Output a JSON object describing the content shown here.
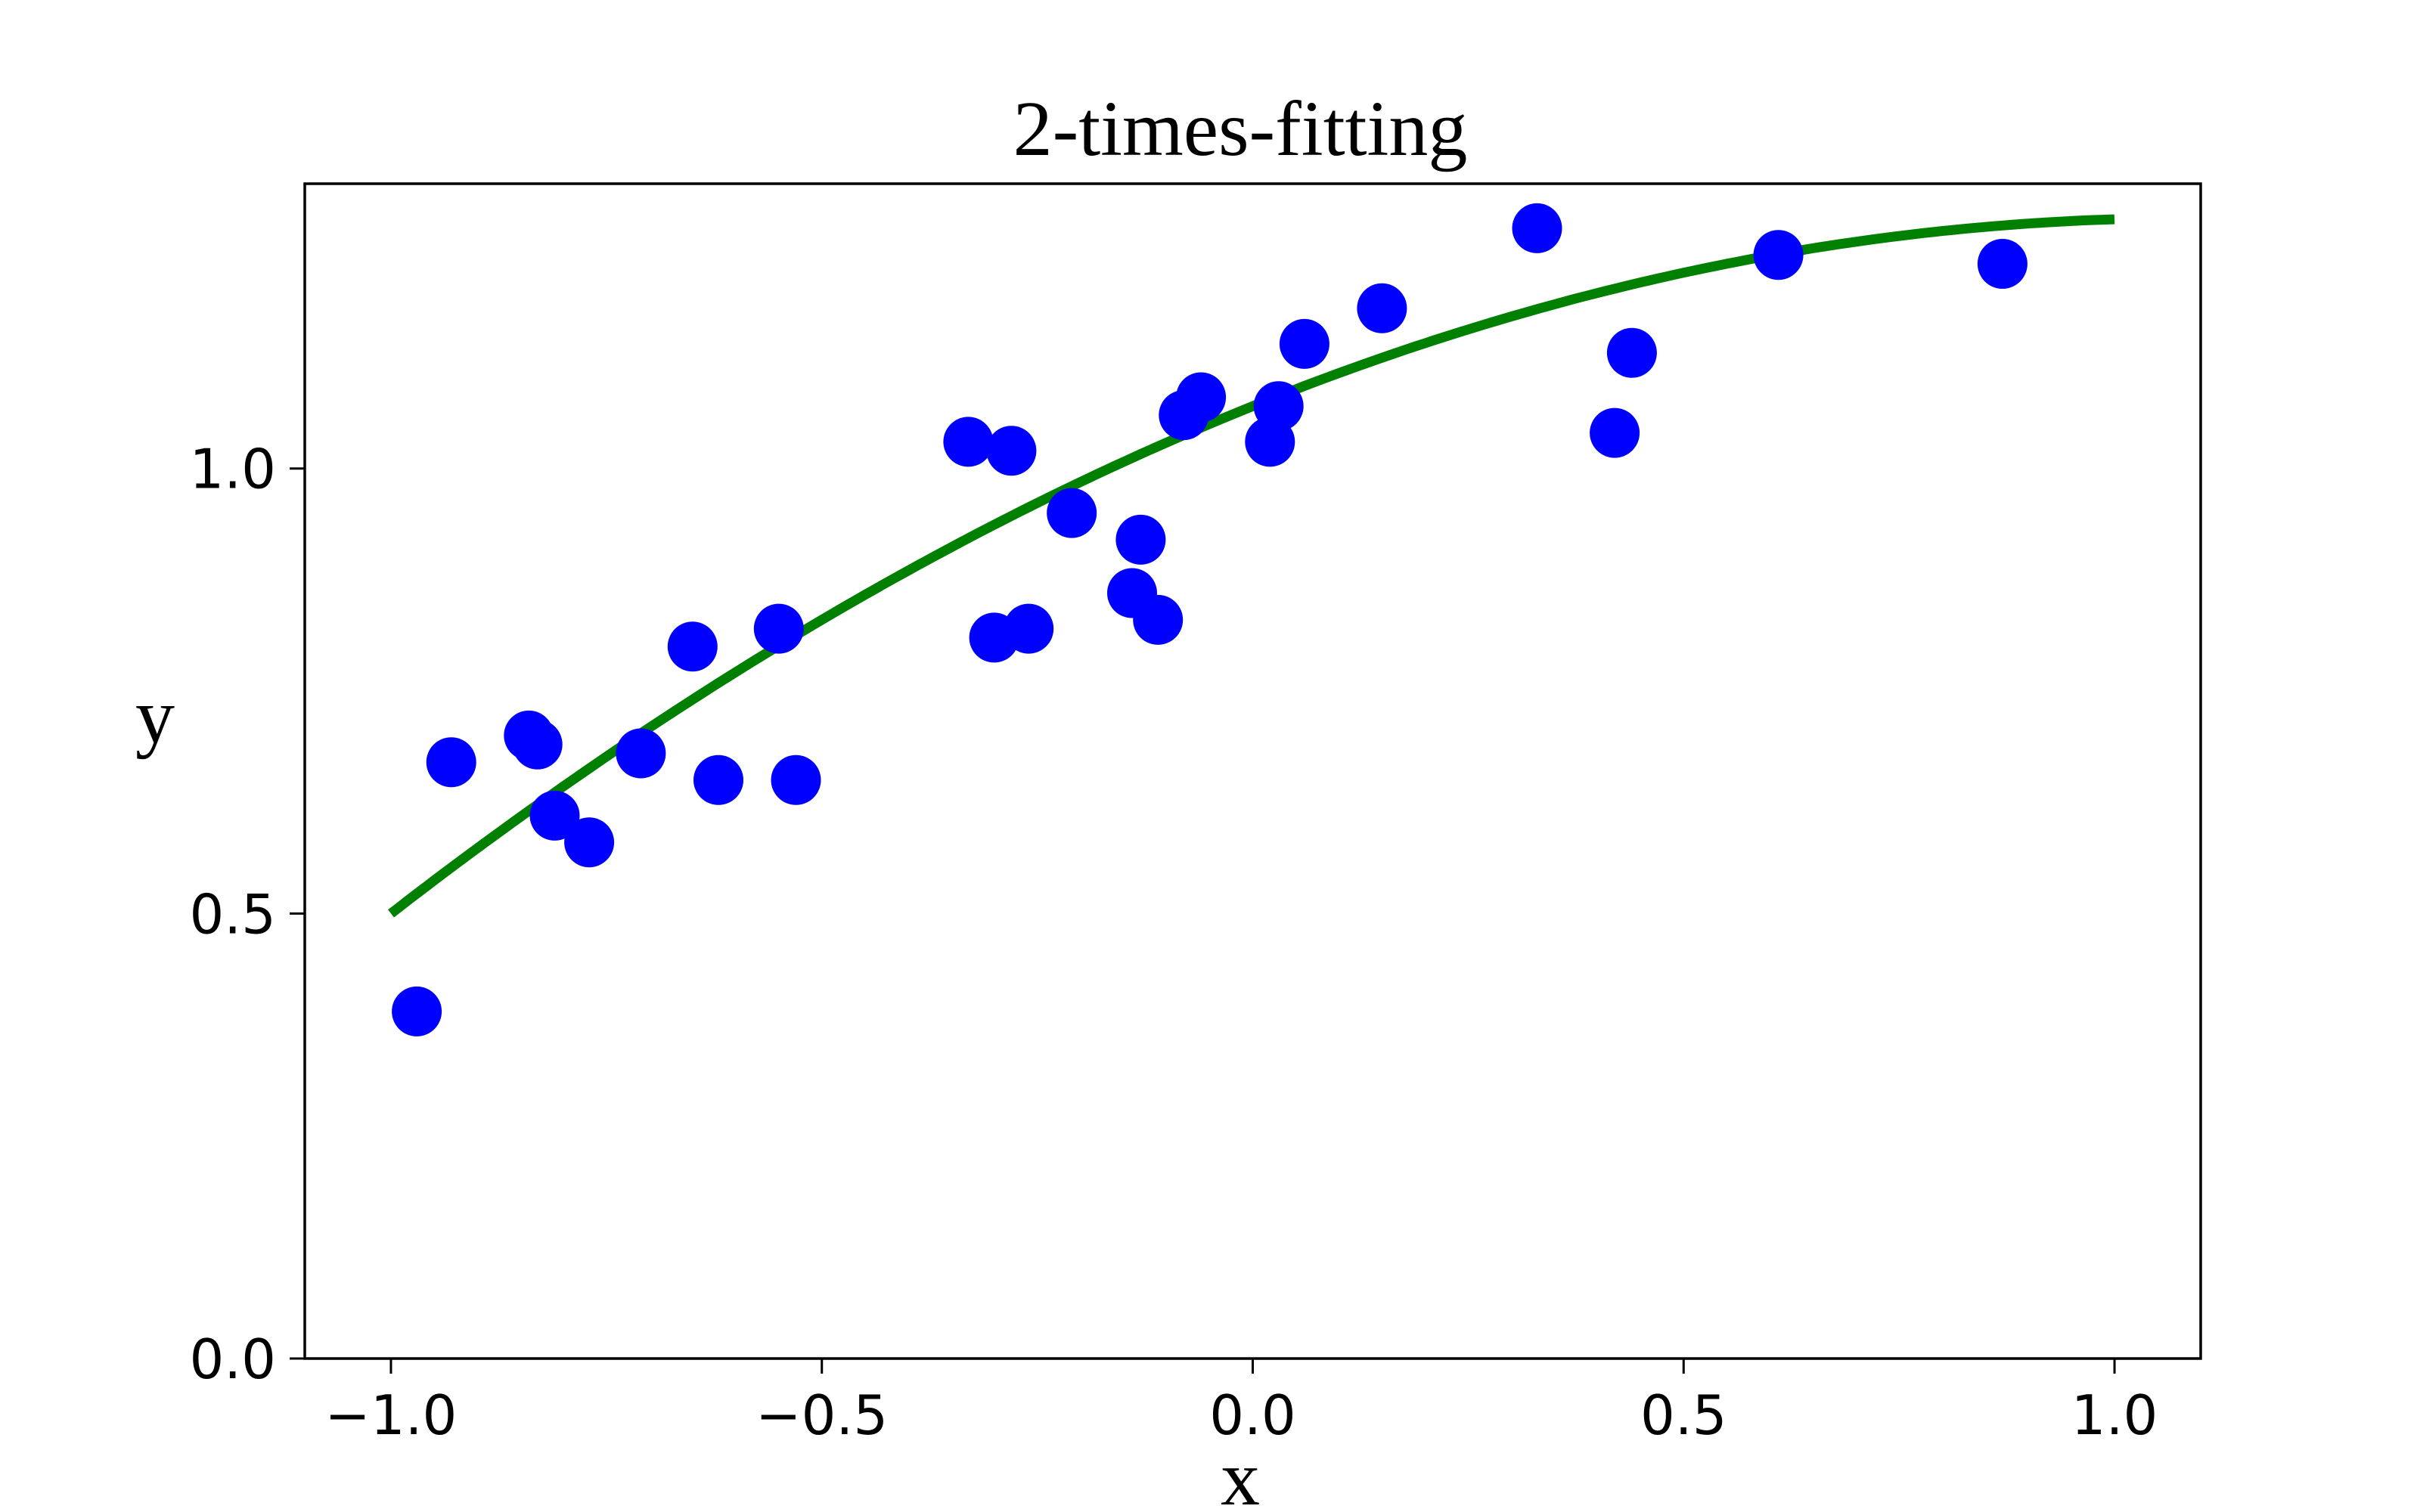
{
  "chart_data": {
    "type": "scatter",
    "title": "2-times-fitting",
    "xlabel": "x",
    "ylabel": "y",
    "xlim": [
      -1.1,
      1.1
    ],
    "ylim": [
      0.0,
      1.32
    ],
    "xticks": [
      -1.0,
      -0.5,
      0.0,
      0.5,
      1.0
    ],
    "xtick_labels": [
      "−1.0",
      "−0.5",
      "0.0",
      "0.5",
      "1.0"
    ],
    "yticks": [
      0.0,
      0.5,
      1.0
    ],
    "ytick_labels": [
      "0.0",
      "0.5",
      "1.0"
    ],
    "grid": false,
    "points": {
      "color": "#0000ff",
      "x": [
        -0.97,
        -0.93,
        -0.84,
        -0.83,
        -0.81,
        -0.77,
        -0.71,
        -0.65,
        -0.62,
        -0.55,
        -0.53,
        -0.33,
        -0.3,
        -0.28,
        -0.26,
        -0.21,
        -0.14,
        -0.13,
        -0.11,
        -0.08,
        -0.06,
        0.02,
        0.03,
        0.06,
        0.15,
        0.33,
        0.42,
        0.44,
        0.61,
        0.87
      ],
      "y": [
        0.39,
        0.67,
        0.7,
        0.69,
        0.61,
        0.58,
        0.68,
        0.8,
        0.65,
        0.82,
        0.65,
        1.03,
        0.81,
        1.02,
        0.82,
        0.95,
        0.86,
        0.92,
        0.83,
        1.06,
        1.08,
        1.03,
        1.07,
        1.14,
        1.18,
        1.27,
        1.04,
        1.13,
        1.24,
        1.23
      ]
    },
    "fit_curve": {
      "color": "#008000",
      "coefficients": {
        "a": -0.18,
        "b": 0.39,
        "c": 1.07
      },
      "x_range": [
        -1.0,
        1.0
      ]
    }
  }
}
